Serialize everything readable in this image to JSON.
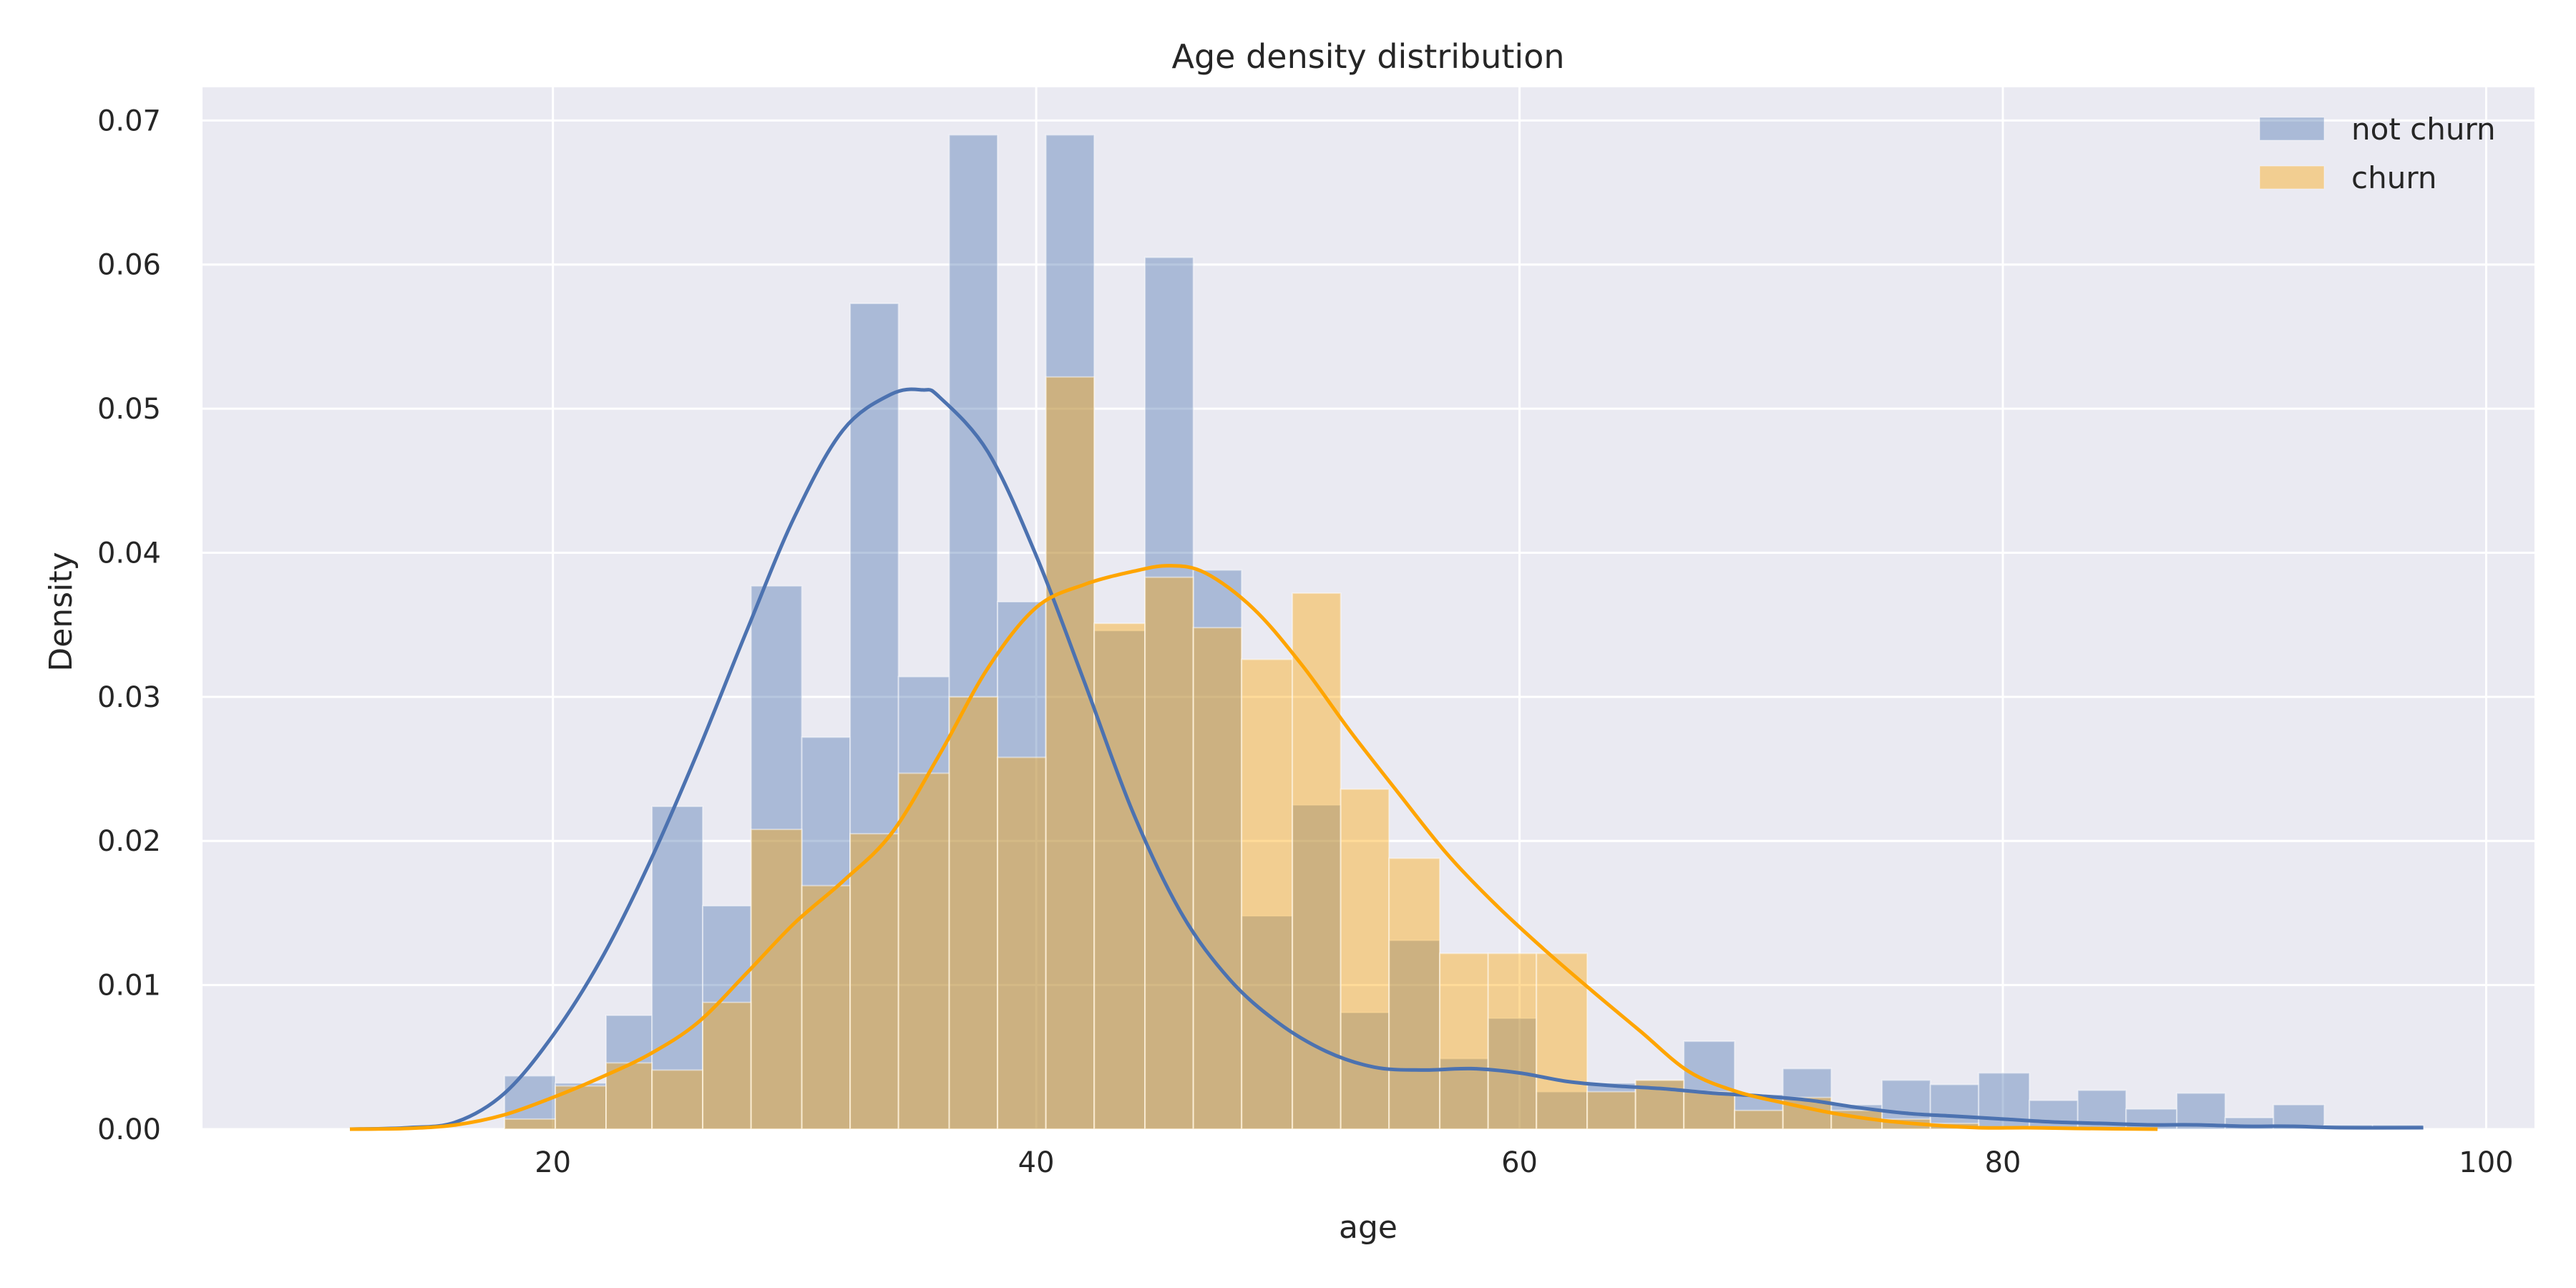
{
  "chart_data": {
    "type": "bar",
    "title": "Age density distribution",
    "xlabel": "age",
    "ylabel": "Density",
    "xlim": [
      5.5,
      102
    ],
    "ylim": [
      0,
      0.0723
    ],
    "xticks": [
      20,
      40,
      60,
      80,
      100
    ],
    "yticks": [
      "0.00",
      "0.01",
      "0.02",
      "0.03",
      "0.04",
      "0.05",
      "0.06",
      "0.07"
    ],
    "grid": true,
    "legend_position": "top-right",
    "series": [
      {
        "name": "not churn",
        "kind": "histogram+kde",
        "color": "#4c72b0",
        "hist_alpha": 0.4,
        "bins": [
          {
            "x0": 18.0,
            "x1": 20.1,
            "value": 0.0037
          },
          {
            "x0": 20.1,
            "x1": 22.2,
            "value": 0.0032
          },
          {
            "x0": 22.2,
            "x1": 24.1,
            "value": 0.0079
          },
          {
            "x0": 24.1,
            "x1": 26.2,
            "value": 0.0224
          },
          {
            "x0": 26.2,
            "x1": 28.2,
            "value": 0.0155
          },
          {
            "x0": 28.2,
            "x1": 30.3,
            "value": 0.0377
          },
          {
            "x0": 30.3,
            "x1": 32.3,
            "value": 0.0272
          },
          {
            "x0": 32.3,
            "x1": 34.3,
            "value": 0.0573
          },
          {
            "x0": 34.3,
            "x1": 36.4,
            "value": 0.0314
          },
          {
            "x0": 36.4,
            "x1": 38.4,
            "value": 0.069
          },
          {
            "x0": 38.4,
            "x1": 40.4,
            "value": 0.0366
          },
          {
            "x0": 40.4,
            "x1": 42.4,
            "value": 0.069
          },
          {
            "x0": 42.4,
            "x1": 44.5,
            "value": 0.0346
          },
          {
            "x0": 44.5,
            "x1": 46.5,
            "value": 0.0605
          },
          {
            "x0": 46.5,
            "x1": 48.5,
            "value": 0.0388
          },
          {
            "x0": 48.5,
            "x1": 50.6,
            "value": 0.0148
          },
          {
            "x0": 50.6,
            "x1": 52.6,
            "value": 0.0225
          },
          {
            "x0": 52.6,
            "x1": 54.6,
            "value": 0.0081
          },
          {
            "x0": 54.6,
            "x1": 56.7,
            "value": 0.0131
          },
          {
            "x0": 56.7,
            "x1": 58.7,
            "value": 0.0049
          },
          {
            "x0": 58.7,
            "x1": 60.7,
            "value": 0.0077
          },
          {
            "x0": 60.7,
            "x1": 62.8,
            "value": 0.0026
          },
          {
            "x0": 62.8,
            "x1": 64.8,
            "value": 0.0032
          },
          {
            "x0": 64.8,
            "x1": 66.8,
            "value": 0.0034
          },
          {
            "x0": 66.8,
            "x1": 68.9,
            "value": 0.0061
          },
          {
            "x0": 68.9,
            "x1": 70.9,
            "value": 0.0024
          },
          {
            "x0": 70.9,
            "x1": 72.9,
            "value": 0.0042
          },
          {
            "x0": 72.9,
            "x1": 75.0,
            "value": 0.0017
          },
          {
            "x0": 75.0,
            "x1": 77.0,
            "value": 0.0034
          },
          {
            "x0": 77.0,
            "x1": 79.0,
            "value": 0.0031
          },
          {
            "x0": 79.0,
            "x1": 81.1,
            "value": 0.0039
          },
          {
            "x0": 81.1,
            "x1": 83.1,
            "value": 0.002
          },
          {
            "x0": 83.1,
            "x1": 85.1,
            "value": 0.0027
          },
          {
            "x0": 85.1,
            "x1": 87.2,
            "value": 0.0014
          },
          {
            "x0": 87.2,
            "x1": 89.2,
            "value": 0.0025
          },
          {
            "x0": 89.2,
            "x1": 91.2,
            "value": 0.0008
          },
          {
            "x0": 91.2,
            "x1": 93.3,
            "value": 0.0017
          },
          {
            "x0": 93.3,
            "x1": 95.3,
            "value": 0.0003
          },
          {
            "x0": 95.3,
            "x1": 97.4,
            "value": 0.0003
          }
        ],
        "kde": [
          [
            11.6,
            0.0
          ],
          [
            14,
            0.0001
          ],
          [
            16,
            0.0005
          ],
          [
            18,
            0.0025
          ],
          [
            20,
            0.0065
          ],
          [
            22,
            0.0118
          ],
          [
            24,
            0.0185
          ],
          [
            26,
            0.0262
          ],
          [
            28,
            0.0345
          ],
          [
            30,
            0.0425
          ],
          [
            32,
            0.0485
          ],
          [
            34,
            0.051
          ],
          [
            35.3,
            0.0513
          ],
          [
            36,
            0.0508
          ],
          [
            38,
            0.047
          ],
          [
            40,
            0.0398
          ],
          [
            42,
            0.031
          ],
          [
            44,
            0.022
          ],
          [
            46,
            0.015
          ],
          [
            48,
            0.0104
          ],
          [
            50,
            0.0074
          ],
          [
            52,
            0.0054
          ],
          [
            54,
            0.0043
          ],
          [
            56,
            0.0041
          ],
          [
            58,
            0.0042
          ],
          [
            60,
            0.0039
          ],
          [
            62,
            0.0033
          ],
          [
            64,
            0.003
          ],
          [
            66,
            0.0028
          ],
          [
            68,
            0.0025
          ],
          [
            70,
            0.0023
          ],
          [
            72,
            0.002
          ],
          [
            74,
            0.0015
          ],
          [
            76,
            0.0011
          ],
          [
            78,
            0.0009
          ],
          [
            80,
            0.0007
          ],
          [
            82,
            0.0005
          ],
          [
            84,
            0.0004
          ],
          [
            86,
            0.0003
          ],
          [
            88,
            0.0003
          ],
          [
            90,
            0.0002
          ],
          [
            92,
            0.0002
          ],
          [
            94,
            0.0001
          ],
          [
            97.4,
            0.0001
          ]
        ]
      },
      {
        "name": "churn",
        "kind": "histogram+kde",
        "color": "#ffa500",
        "hist_alpha": 0.4,
        "bins": [
          {
            "x0": 18.0,
            "x1": 20.1,
            "value": 0.0007
          },
          {
            "x0": 20.1,
            "x1": 22.2,
            "value": 0.003
          },
          {
            "x0": 22.2,
            "x1": 24.1,
            "value": 0.0046
          },
          {
            "x0": 24.1,
            "x1": 26.2,
            "value": 0.0041
          },
          {
            "x0": 26.2,
            "x1": 28.2,
            "value": 0.0088
          },
          {
            "x0": 28.2,
            "x1": 30.3,
            "value": 0.0208
          },
          {
            "x0": 30.3,
            "x1": 32.3,
            "value": 0.0169
          },
          {
            "x0": 32.3,
            "x1": 34.3,
            "value": 0.0205
          },
          {
            "x0": 34.3,
            "x1": 36.4,
            "value": 0.0247
          },
          {
            "x0": 36.4,
            "x1": 38.4,
            "value": 0.03
          },
          {
            "x0": 38.4,
            "x1": 40.4,
            "value": 0.0258
          },
          {
            "x0": 40.4,
            "x1": 42.4,
            "value": 0.0522
          },
          {
            "x0": 42.4,
            "x1": 44.5,
            "value": 0.0351
          },
          {
            "x0": 44.5,
            "x1": 46.5,
            "value": 0.0383
          },
          {
            "x0": 46.5,
            "x1": 48.5,
            "value": 0.0348
          },
          {
            "x0": 48.5,
            "x1": 50.6,
            "value": 0.0326
          },
          {
            "x0": 50.6,
            "x1": 52.6,
            "value": 0.0372
          },
          {
            "x0": 52.6,
            "x1": 54.6,
            "value": 0.0236
          },
          {
            "x0": 54.6,
            "x1": 56.7,
            "value": 0.0188
          },
          {
            "x0": 56.7,
            "x1": 58.7,
            "value": 0.0122
          },
          {
            "x0": 58.7,
            "x1": 60.7,
            "value": 0.0122
          },
          {
            "x0": 60.7,
            "x1": 62.8,
            "value": 0.0122
          },
          {
            "x0": 62.8,
            "x1": 64.8,
            "value": 0.0026
          },
          {
            "x0": 64.8,
            "x1": 66.8,
            "value": 0.0034
          },
          {
            "x0": 66.8,
            "x1": 68.9,
            "value": 0.0026
          },
          {
            "x0": 68.9,
            "x1": 70.9,
            "value": 0.0013
          },
          {
            "x0": 70.9,
            "x1": 72.9,
            "value": 0.0022
          },
          {
            "x0": 72.9,
            "x1": 75.0,
            "value": 0.0013
          },
          {
            "x0": 75.0,
            "x1": 77.0,
            "value": 0.0007
          },
          {
            "x0": 77.0,
            "x1": 79.0,
            "value": 0.0004
          }
        ],
        "kde": [
          [
            11.6,
            0.0
          ],
          [
            14,
            5e-05
          ],
          [
            16,
            0.0003
          ],
          [
            18,
            0.001
          ],
          [
            20,
            0.0022
          ],
          [
            22,
            0.0036
          ],
          [
            24,
            0.0052
          ],
          [
            26,
            0.0074
          ],
          [
            28,
            0.0108
          ],
          [
            30,
            0.0143
          ],
          [
            32,
            0.0172
          ],
          [
            34,
            0.0205
          ],
          [
            36,
            0.026
          ],
          [
            38,
            0.032
          ],
          [
            40,
            0.0362
          ],
          [
            42,
            0.0378
          ],
          [
            44,
            0.0387
          ],
          [
            45.5,
            0.0391
          ],
          [
            47,
            0.0386
          ],
          [
            49,
            0.0361
          ],
          [
            51,
            0.0322
          ],
          [
            53,
            0.0276
          ],
          [
            55,
            0.0233
          ],
          [
            57,
            0.0191
          ],
          [
            59,
            0.0156
          ],
          [
            61,
            0.0125
          ],
          [
            63,
            0.0096
          ],
          [
            65,
            0.0068
          ],
          [
            67,
            0.004
          ],
          [
            69,
            0.0026
          ],
          [
            71,
            0.0018
          ],
          [
            73,
            0.0011
          ],
          [
            75,
            0.0006
          ],
          [
            77,
            0.0003
          ],
          [
            79,
            0.0001
          ],
          [
            81,
            0.0001
          ],
          [
            83,
            5e-05
          ],
          [
            86.4,
            0.0
          ]
        ]
      }
    ]
  }
}
